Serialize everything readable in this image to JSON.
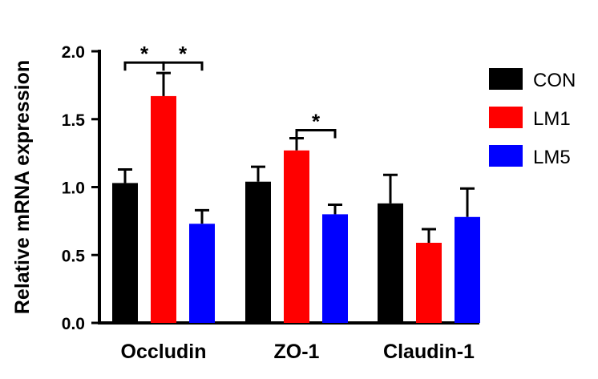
{
  "chart_data": {
    "type": "bar",
    "ylabel": "Relative mRNA expression",
    "xlabel": "",
    "ylim": [
      0,
      2.0
    ],
    "yticks": [
      "0.0",
      "0.5",
      "1.0",
      "1.5",
      "2.0"
    ],
    "categories": [
      "Occludin",
      "ZO-1",
      "Claudin-1"
    ],
    "series": [
      {
        "name": "CON",
        "color": "#000000",
        "values": [
          1.03,
          1.04,
          0.88
        ],
        "errors": [
          0.1,
          0.11,
          0.21
        ]
      },
      {
        "name": "LM1",
        "color": "#ff0000",
        "values": [
          1.67,
          1.27,
          0.59
        ],
        "errors": [
          0.17,
          0.09,
          0.1
        ]
      },
      {
        "name": "LM5",
        "color": "#0000ff",
        "values": [
          0.73,
          0.8,
          0.78
        ],
        "errors": [
          0.1,
          0.07,
          0.21
        ]
      }
    ],
    "legend": {
      "position": "right"
    },
    "grid": false,
    "significance": [
      {
        "category": "Occludin",
        "from": "CON",
        "to": "LM1",
        "label": "*"
      },
      {
        "category": "Occludin",
        "from": "LM1",
        "to": "LM5",
        "label": "*"
      },
      {
        "category": "ZO-1",
        "from": "LM1",
        "to": "LM5",
        "label": "*"
      }
    ]
  }
}
